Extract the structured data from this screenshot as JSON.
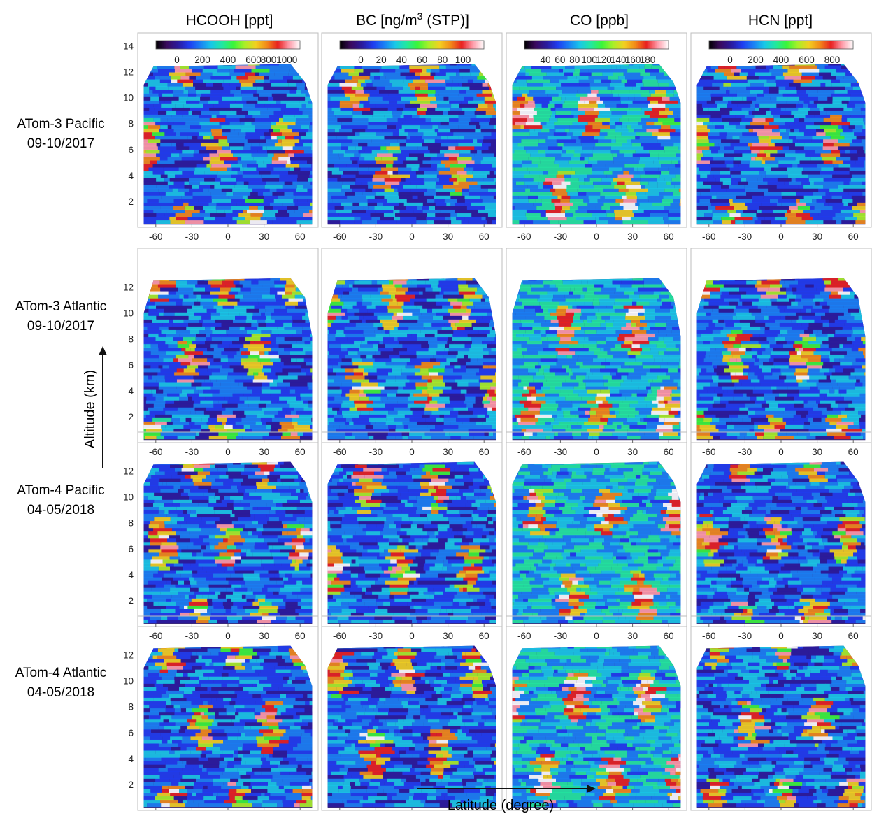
{
  "chart_data": {
    "type": "heatmap",
    "columns": [
      {
        "id": "hcooh",
        "title": "HCOOH [ppt]",
        "colorbar_ticks": [
          "0",
          "200",
          "400",
          "600",
          "8001000"
        ]
      },
      {
        "id": "bc",
        "title_main": "BC [ng/m",
        "title_sup": "3",
        "title_tail": " (STP)]",
        "colorbar_ticks": [
          "0",
          "20",
          "40",
          "60",
          "80",
          "100"
        ]
      },
      {
        "id": "co",
        "title": "CO [ppb]",
        "colorbar_ticks": [
          "40",
          "60",
          "80",
          "100",
          "120",
          "140",
          "160",
          "180"
        ]
      },
      {
        "id": "hcn",
        "title": "HCN [ppt]",
        "colorbar_ticks": [
          "0",
          "200",
          "400",
          "600",
          "800"
        ]
      }
    ],
    "rows": [
      {
        "line1": "ATom-3 Pacific",
        "line2": "09-10/2017",
        "y_max": 14
      },
      {
        "line1": "ATom-3 Atlantic",
        "line2": "09-10/2017",
        "y_max": 12
      },
      {
        "line1": "ATom-4 Pacific",
        "line2": "04-05/2018",
        "y_max": 12
      },
      {
        "line1": "ATom-4 Atlantic",
        "line2": "04-05/2018",
        "y_max": 12
      }
    ],
    "x_ticks": [
      "-60",
      "-30",
      "0",
      "30",
      "60"
    ],
    "x_tick_values": [
      -60,
      -30,
      0,
      30,
      60
    ],
    "xlim": [
      -75,
      75
    ],
    "ylim": [
      0,
      15
    ],
    "y_ticks_row1": [
      "2",
      "4",
      "6",
      "8",
      "10",
      "12",
      "14"
    ],
    "y_ticks_other": [
      "2",
      "4",
      "6",
      "8",
      "10",
      "12"
    ],
    "ylabel": "Altitude (km)",
    "xlabel": "Latitude (degree)",
    "colormap": [
      "#000000",
      "#3a0a5e",
      "#2a1a9c",
      "#1f3cf0",
      "#1a7ff5",
      "#18c8e8",
      "#22e8a0",
      "#3af53a",
      "#a8f028",
      "#f2d020",
      "#f28a18",
      "#e82020",
      "#ff9aa8",
      "#ffffff"
    ],
    "background_color": "#3c2a78"
  }
}
